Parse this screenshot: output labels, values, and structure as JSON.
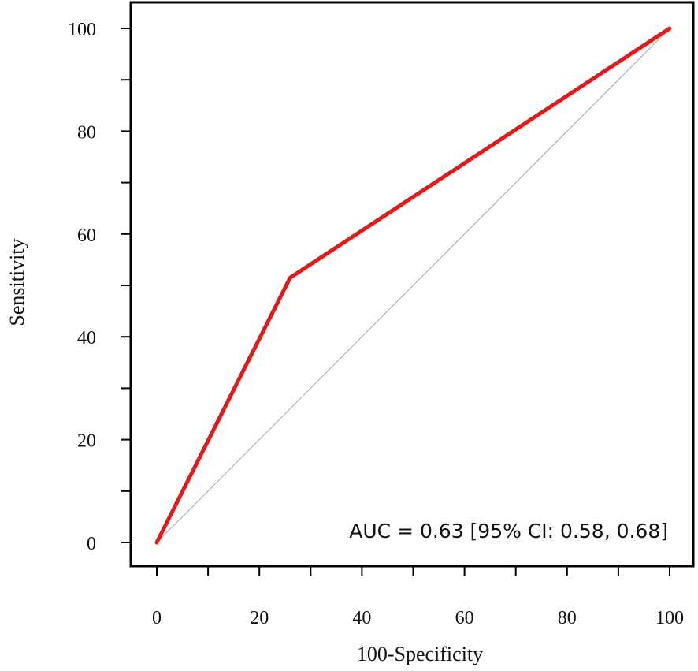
{
  "chart_data": {
    "type": "line",
    "title": "",
    "xlabel": "100-Specificity",
    "ylabel": "Sensitivity",
    "xlim": [
      0,
      100
    ],
    "ylim": [
      0,
      100
    ],
    "xticks": [
      0,
      20,
      40,
      60,
      80,
      100
    ],
    "yticks": [
      0,
      20,
      40,
      60,
      80,
      100
    ],
    "xticks_minor": [
      10,
      30,
      50,
      70,
      90
    ],
    "yticks_minor": [
      10,
      30,
      50,
      70,
      90
    ],
    "grid": false,
    "series": [
      {
        "color": "#e31a1c",
        "points": [
          {
            "x": 0,
            "y": 0
          },
          {
            "x": 26,
            "y": 51.5
          },
          {
            "x": 100,
            "y": 100
          }
        ]
      }
    ],
    "reference_line": {
      "color": "#a6a6a6",
      "points": [
        {
          "x": 0,
          "y": 0
        },
        {
          "x": 100,
          "y": 100
        }
      ]
    },
    "annotation": "AUC = 0.63 [95% CI: 0.58, 0.68]"
  }
}
